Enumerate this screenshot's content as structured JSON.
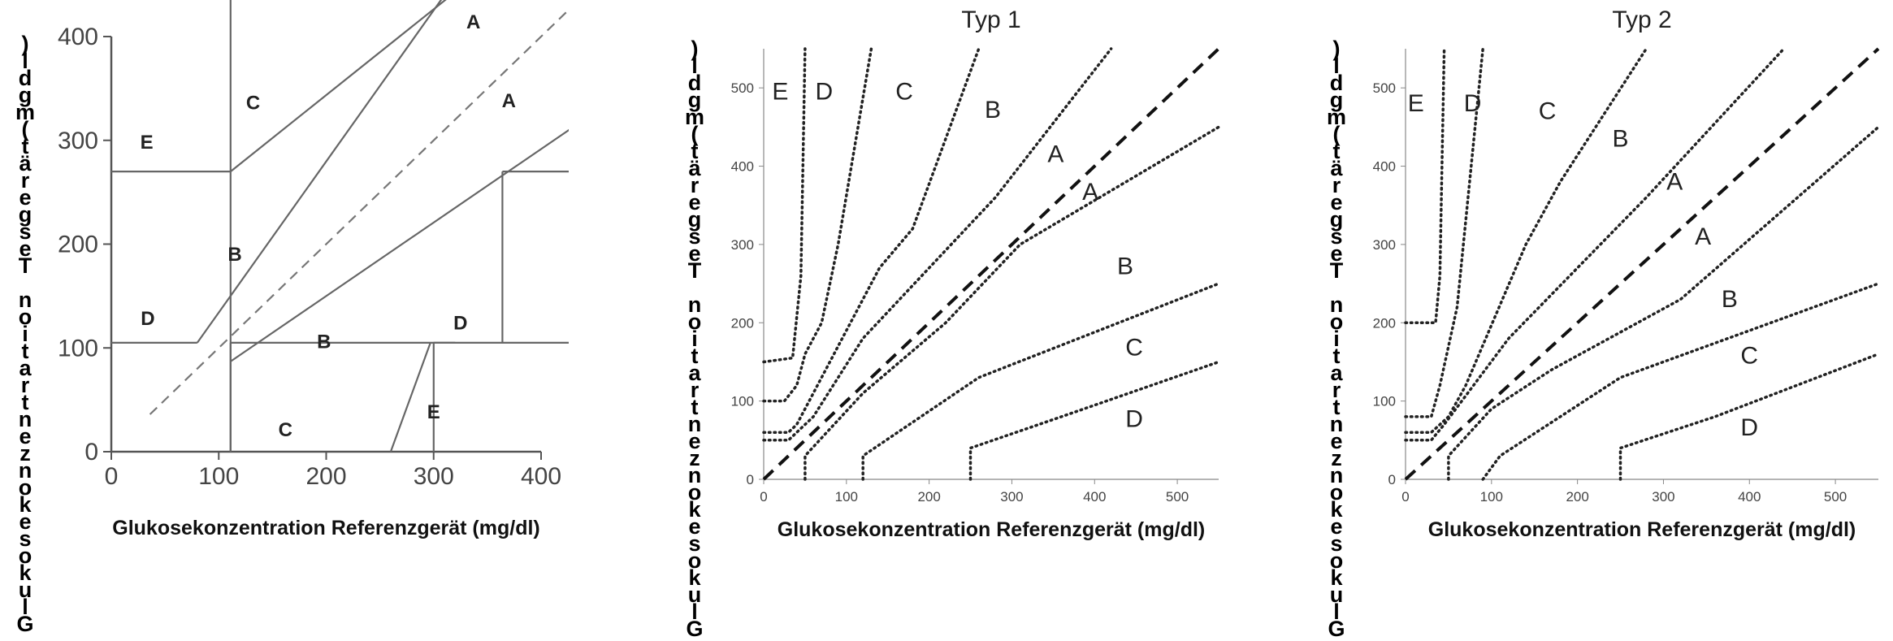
{
  "panels": [
    {
      "title": "",
      "xlabel": "Glukosekonzentration Referenzgerät (mg/dl)",
      "ylabel_chars": [
        ")",
        "l",
        "d",
        "g",
        "m",
        "(",
        "t",
        "ä",
        "r",
        "e",
        "g",
        "s",
        "e",
        "T",
        "",
        "n",
        "o",
        "i",
        "t",
        "a",
        "r",
        "t",
        "n",
        "e",
        "z",
        "n",
        "o",
        "k",
        "e",
        "s",
        "o",
        "k",
        "u",
        "l",
        "G"
      ],
      "x_ticks": [
        "0",
        "100",
        "200",
        "300",
        "400"
      ],
      "y_ticks": [
        "0",
        "100",
        "200",
        "300",
        "400"
      ],
      "xlim": [
        0,
        400
      ],
      "ylim": [
        0,
        400
      ],
      "zone_labels": [
        {
          "text": "A",
          "x": 337,
          "y": 408
        },
        {
          "text": "A",
          "x": 370,
          "y": 332
        },
        {
          "text": "B",
          "x": 115,
          "y": 184
        },
        {
          "text": "B",
          "x": 198,
          "y": 100
        },
        {
          "text": "C",
          "x": 132,
          "y": 330
        },
        {
          "text": "C",
          "x": 162,
          "y": 15
        },
        {
          "text": "D",
          "x": 34,
          "y": 122
        },
        {
          "text": "D",
          "x": 325,
          "y": 118
        },
        {
          "text": "E",
          "x": 33,
          "y": 292
        },
        {
          "text": "E",
          "x": 300,
          "y": 32
        }
      ]
    },
    {
      "title": "Typ 1",
      "xlabel": "Glukosekonzentration Referenzgerät (mg/dl)",
      "ylabel_chars": [
        ")",
        "l",
        "d",
        "g",
        "m",
        "(",
        "t",
        "ä",
        "r",
        "e",
        "g",
        "s",
        "e",
        "T",
        "",
        "n",
        "o",
        "i",
        "t",
        "a",
        "r",
        "t",
        "n",
        "e",
        "z",
        "n",
        "o",
        "k",
        "e",
        "s",
        "o",
        "k",
        "u",
        "l",
        "G"
      ],
      "x_ticks": [
        "0",
        "100",
        "200",
        "300",
        "400",
        "500"
      ],
      "y_ticks": [
        "0",
        "100",
        "200",
        "300",
        "400",
        "500"
      ],
      "xlim": [
        0,
        550
      ],
      "ylim": [
        0,
        550
      ],
      "zone_labels": [
        {
          "text": "E",
          "x": 20,
          "y": 485
        },
        {
          "text": "D",
          "x": 73,
          "y": 485
        },
        {
          "text": "C",
          "x": 170,
          "y": 485
        },
        {
          "text": "B",
          "x": 277,
          "y": 462
        },
        {
          "text": "A",
          "x": 353,
          "y": 405
        },
        {
          "text": "A",
          "x": 395,
          "y": 357
        },
        {
          "text": "B",
          "x": 437,
          "y": 262
        },
        {
          "text": "C",
          "x": 448,
          "y": 158
        },
        {
          "text": "D",
          "x": 448,
          "y": 67
        }
      ]
    },
    {
      "title": "Typ 2",
      "xlabel": "Glukosekonzentration Referenzgerät (mg/dl)",
      "ylabel_chars": [
        ")",
        "l",
        "d",
        "g",
        "m",
        "(",
        "t",
        "ä",
        "r",
        "e",
        "g",
        "s",
        "e",
        "T",
        "",
        "n",
        "o",
        "i",
        "t",
        "a",
        "r",
        "t",
        "n",
        "e",
        "z",
        "n",
        "o",
        "k",
        "e",
        "s",
        "o",
        "k",
        "u",
        "l",
        "G"
      ],
      "x_ticks": [
        "0",
        "100",
        "200",
        "300",
        "400",
        "500"
      ],
      "y_ticks": [
        "0",
        "100",
        "200",
        "300",
        "400",
        "500"
      ],
      "xlim": [
        0,
        550
      ],
      "ylim": [
        0,
        550
      ],
      "zone_labels": [
        {
          "text": "E",
          "x": 12,
          "y": 470
        },
        {
          "text": "D",
          "x": 78,
          "y": 470
        },
        {
          "text": "C",
          "x": 165,
          "y": 460
        },
        {
          "text": "B",
          "x": 250,
          "y": 425
        },
        {
          "text": "A",
          "x": 313,
          "y": 370
        },
        {
          "text": "A",
          "x": 346,
          "y": 300
        },
        {
          "text": "B",
          "x": 377,
          "y": 220
        },
        {
          "text": "C",
          "x": 400,
          "y": 148
        },
        {
          "text": "D",
          "x": 400,
          "y": 56
        }
      ]
    }
  ]
}
